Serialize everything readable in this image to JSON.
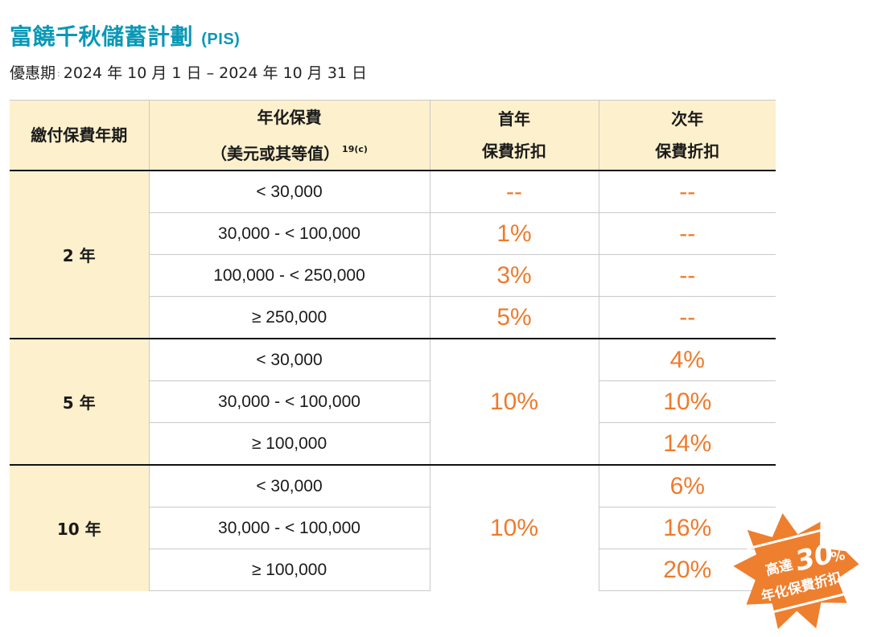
{
  "header": {
    "title": "富饒千秋儲蓄計劃",
    "title_suffix": "(PIS)",
    "period_label": "優惠期",
    "period_colon": ":",
    "period_value": "2024 年 10 月 1 日 – 2024 年 10 月 31 日"
  },
  "table": {
    "headers": {
      "term": "繳付保費年期",
      "premium_line1": "年化保費",
      "premium_line2": "（美元或其等值）",
      "premium_footnote": "19(c)",
      "first_year_line1": "首年",
      "first_year_line2": "保費折扣",
      "second_year_line1": "次年",
      "second_year_line2": "保費折扣"
    },
    "groups": [
      {
        "term": "2 年",
        "rows": [
          {
            "premium": "< 30,000",
            "first": "--",
            "second": "--"
          },
          {
            "premium": "30,000 - < 100,000",
            "first": "1%",
            "second": "--"
          },
          {
            "premium": "100,000 - < 250,000",
            "first": "3%",
            "second": "--"
          },
          {
            "premium": "≥ 250,000",
            "first": "5%",
            "second": "--"
          }
        ]
      },
      {
        "term": "5 年",
        "first_merged": "10%",
        "rows": [
          {
            "premium": "< 30,000",
            "second": "4%"
          },
          {
            "premium": "30,000 - < 100,000",
            "second": "10%"
          },
          {
            "premium": "≥ 100,000",
            "second": "14%"
          }
        ]
      },
      {
        "term": "10 年",
        "first_merged": "10%",
        "rows": [
          {
            "premium": "< 30,000",
            "second": "6%"
          },
          {
            "premium": "30,000 - < 100,000",
            "second": "16%"
          },
          {
            "premium": "≥ 100,000",
            "second": "20%"
          }
        ]
      }
    ]
  },
  "badge": {
    "prefix": "高達",
    "number": "30",
    "unit": "%",
    "caption": "年化保費折扣"
  },
  "colors": {
    "title": "#0a98b7",
    "header_bg": "#fdf0cd",
    "accent_orange": "#ee7b2d",
    "badge_orange": "#ee7f2e"
  }
}
